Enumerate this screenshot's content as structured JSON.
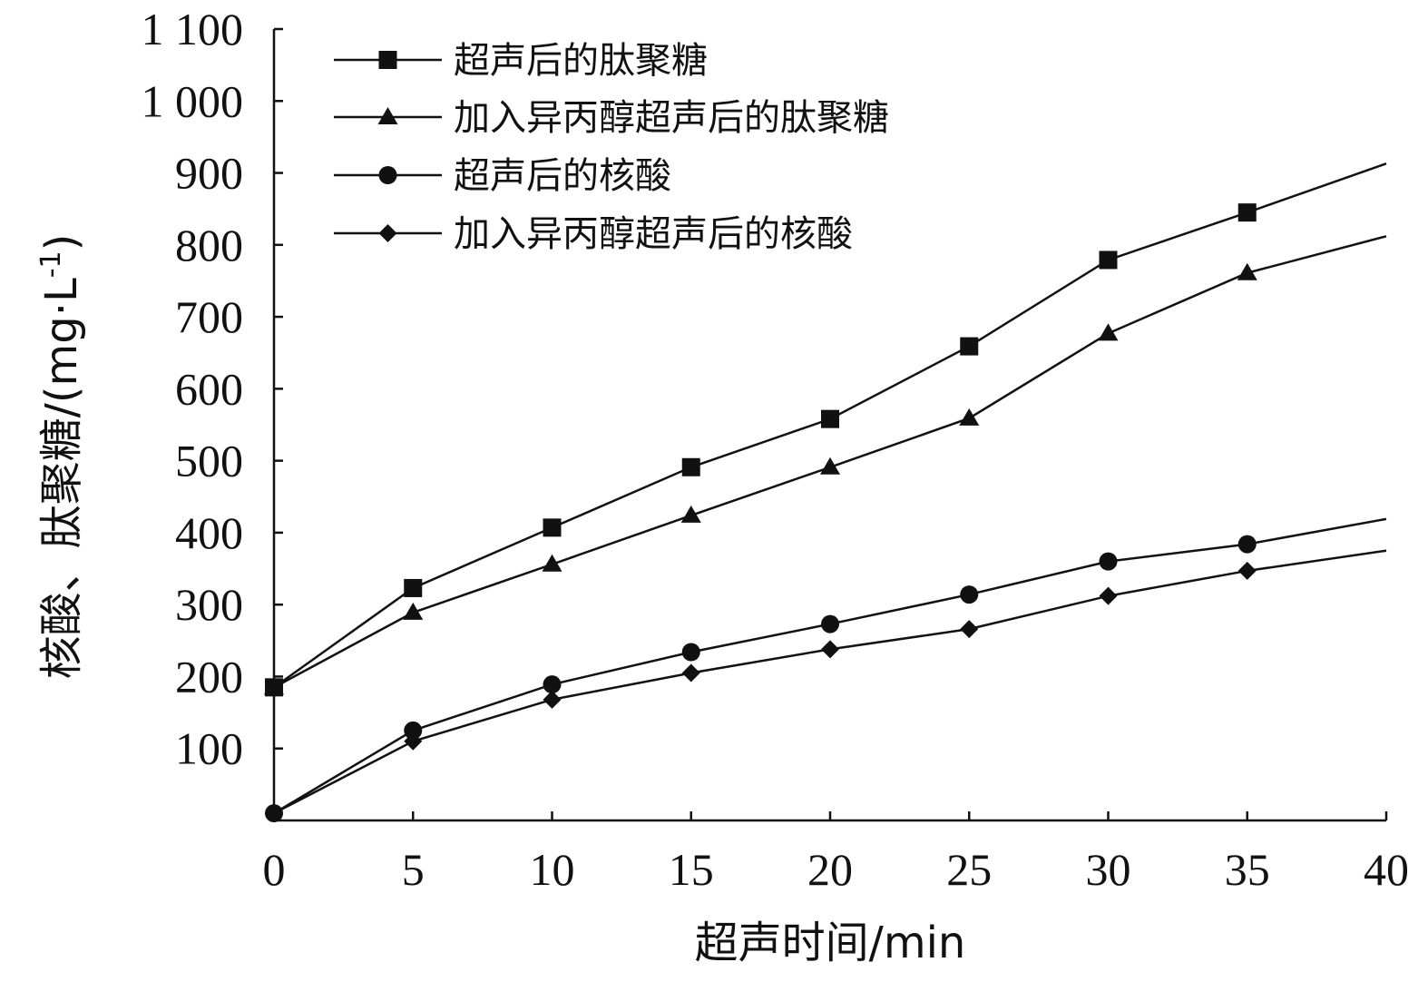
{
  "chart_data": {
    "type": "line",
    "xlabel": "超声时间/min",
    "ylabel": "核酸、肽聚糖/(mg·L",
    "ylabel_sup": "-1",
    "ylabel_close": ")",
    "xlim": [
      0,
      40
    ],
    "ylim": [
      0,
      1100
    ],
    "x_ticks": [
      0,
      5,
      10,
      15,
      20,
      25,
      30,
      35,
      40
    ],
    "x_tick_labels": [
      "0",
      "5",
      "10",
      "15",
      "20",
      "25",
      "30",
      "35",
      "40"
    ],
    "y_ticks": [
      100,
      200,
      300,
      400,
      500,
      600,
      700,
      800,
      900,
      1000,
      1100
    ],
    "y_tick_labels": [
      "100",
      "200",
      "300",
      "400",
      "500",
      "600",
      "700",
      "800",
      "900",
      "1 000",
      "1 100"
    ],
    "grid": false,
    "legend_position": "top-left",
    "x": [
      0,
      5,
      10,
      15,
      20,
      25,
      30,
      35,
      40
    ],
    "series": [
      {
        "name": "超声后的肽聚糖",
        "marker": "square",
        "values": [
          185,
          323,
          407,
          491,
          558,
          659,
          779,
          845,
          913
        ]
      },
      {
        "name": "加入异丙醇超声后的肽聚糖",
        "marker": "triangle",
        "values": [
          185,
          289,
          356,
          424,
          491,
          559,
          677,
          761,
          812
        ]
      },
      {
        "name": "超声后的核酸",
        "marker": "circle",
        "values": [
          10,
          125,
          189,
          234,
          273,
          314,
          360,
          384,
          419
        ]
      },
      {
        "name": "加入异丙醇超声后的核酸",
        "marker": "diamond",
        "values": [
          10,
          110,
          168,
          205,
          238,
          266,
          312,
          347,
          375
        ]
      }
    ]
  }
}
